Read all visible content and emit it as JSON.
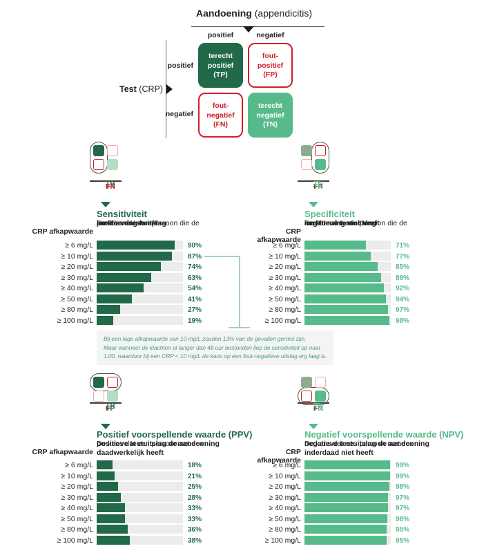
{
  "colors": {
    "dark_green": "#216948",
    "mid_green": "#57ba8b",
    "sage_green": "#8fac92",
    "light_green": "#b7dcc6",
    "red": "#d01f26",
    "faded_red": "#eaa9a5",
    "bar_track": "#ececec",
    "note_text": "#4f9e79",
    "connector": "#a9cfbc",
    "line_gray": "#58595b",
    "ink": "#232323"
  },
  "matrix": {
    "header_bold": "Aandoening",
    "header_normal": "(appendicitis)",
    "col_labels": [
      "positief",
      "negatief"
    ],
    "row_labels": [
      "positief",
      "negatief"
    ],
    "axis_bold": "Test",
    "axis_normal": "(CRP)",
    "cells": [
      {
        "id": "tp",
        "lines": [
          "terecht",
          "positief",
          "(TP)"
        ],
        "style": "dark"
      },
      {
        "id": "fp",
        "lines": [
          "fout-",
          "positief",
          "(FP)"
        ],
        "style": "red"
      },
      {
        "id": "fn",
        "lines": [
          "fout-",
          "negatief",
          "(FN)"
        ],
        "style": "red"
      },
      {
        "id": "tn",
        "lines": [
          "terecht",
          "negatief",
          "(TN)"
        ],
        "style": "mid"
      }
    ]
  },
  "chart_data": [
    {
      "type": "bar",
      "orientation": "horizontal",
      "id": "sensitiviteit",
      "accent": "dark",
      "title": "Sensitiviteit",
      "desc": [
        {
          "t": "De kans dat een persoon die de ",
          "b": 0
        },
        {
          "t": "aandoening heeft",
          "b": 1
        },
        {
          "t": " een ",
          "b": 0
        },
        {
          "t": "positieve testuitslag",
          "b": 1
        },
        {
          "t": " heeft",
          "b": 0
        }
      ],
      "axis_label": "CRP afkapwaarde",
      "unit": "%",
      "xlim": [
        0,
        100
      ],
      "icon": {
        "capsule": "left-column",
        "tp": "dark",
        "fp": "red-faded",
        "fn": "red",
        "tn": "light"
      },
      "formula": {
        "num": [
          {
            "t": "TP",
            "c": "dark"
          }
        ],
        "den": [
          {
            "t": "TP",
            "c": "dark"
          },
          {
            "t": " + ",
            "c": "text"
          },
          {
            "t": "FN",
            "c": "red"
          }
        ]
      },
      "categories": [
        "≥ 6 mg/L",
        "≥ 10 mg/L",
        "≥ 20 mg/L",
        "≥ 30 mg/L",
        "≥ 40 mg/L",
        "≥ 50 mg/L",
        "≥ 80 mg/L",
        "≥ 100 mg/L"
      ],
      "values": [
        90,
        87,
        74,
        63,
        54,
        41,
        27,
        19
      ],
      "annotation_lines": [
        "Bij een lage afkapwaarde van 10 mg/L zouden 13% van de gevallen gemist zijn.",
        "Maar wanneer de klachten al langer dan 48 uur bestonden liep de sensitiviteit op naar",
        "1.00, waardoor bij een CRP < 10 mg/L de kans op een fout-negatieve uitslag erg laag is."
      ]
    },
    {
      "type": "bar",
      "orientation": "horizontal",
      "id": "specificiteit",
      "accent": "mid",
      "title": "Specificiteit",
      "desc": [
        {
          "t": "De kans dat een persoon die de ",
          "b": 0
        },
        {
          "t": "aandoening niet heeft",
          "b": 1
        },
        {
          "t": " een ",
          "b": 0
        },
        {
          "t": "negatieve testuitslag",
          "b": 1
        },
        {
          "t": " heeft",
          "b": 0
        }
      ],
      "axis_label": "CRP afkapwaarde",
      "unit": "%",
      "xlim": [
        0,
        100
      ],
      "icon": {
        "capsule": "right-column",
        "tp": "sage",
        "fp": "red",
        "fn": "red-faded",
        "tn": "mid"
      },
      "formula": {
        "num": [
          {
            "t": "TN",
            "c": "mid"
          }
        ],
        "den": [
          {
            "t": "FP",
            "c": "red"
          },
          {
            "t": " + ",
            "c": "text"
          },
          {
            "t": "TN",
            "c": "mid"
          }
        ]
      },
      "categories": [
        "≥ 6 mg/L",
        "≥ 10 mg/L",
        "≥ 20 mg/L",
        "≥ 30 mg/L",
        "≥ 40 mg/L",
        "≥ 50 mg/L",
        "≥ 80 mg/L",
        "≥ 100 mg/L"
      ],
      "values": [
        71,
        77,
        85,
        89,
        92,
        94,
        97,
        98
      ]
    },
    {
      "type": "bar",
      "orientation": "horizontal",
      "id": "ppv",
      "accent": "dark",
      "title": "Positief voorspellende waarde (PPV)",
      "desc": [
        {
          "t": "De kans dat een persoonmet een ",
          "b": 0
        },
        {
          "t": "positieve testuitslag de aandoening daadwerkelijk heeft",
          "b": 1
        }
      ],
      "axis_label": "CRP afkapwaarde",
      "unit": "%",
      "xlim": [
        0,
        100
      ],
      "icon": {
        "capsule": "top-row",
        "tp": "dark",
        "fp": "red",
        "fn": "red-faded",
        "tn": "light"
      },
      "formula": {
        "num": [
          {
            "t": "TP",
            "c": "dark"
          }
        ],
        "den": [
          {
            "t": "FP",
            "c": "red"
          },
          {
            "t": " + ",
            "c": "text"
          },
          {
            "t": "TP",
            "c": "dark"
          }
        ]
      },
      "categories": [
        "≥ 6 mg/L",
        "≥ 10 mg/L",
        "≥ 20 mg/L",
        "≥ 30 mg/L",
        "≥ 40 mg/L",
        "≥ 50 mg/L",
        "≥ 80 mg/L",
        "≥ 100 mg/L"
      ],
      "values": [
        18,
        21,
        25,
        28,
        33,
        33,
        36,
        38
      ]
    },
    {
      "type": "bar",
      "orientation": "horizontal",
      "id": "npv",
      "accent": "mid",
      "title": "Negatief voorspellende waarde (NPV)",
      "desc": [
        {
          "t": "De kans dat een persoon met een ",
          "b": 0
        },
        {
          "t": "negatieve testuitslag de aandoening inderdaad niet heeft",
          "b": 1
        }
      ],
      "axis_label": "CRP afkapwaarde",
      "unit": "%",
      "xlim": [
        0,
        100
      ],
      "icon": {
        "capsule": "bottom-row",
        "tp": "sage",
        "fp": "red-faded",
        "fn": "red",
        "tn": "mid"
      },
      "formula": {
        "num": [
          {
            "t": "TN",
            "c": "mid"
          }
        ],
        "den": [
          {
            "t": "FN",
            "c": "red"
          },
          {
            "t": " + ",
            "c": "text"
          },
          {
            "t": "TN",
            "c": "mid"
          }
        ]
      },
      "categories": [
        "≥ 6 mg/L",
        "≥ 10 mg/L",
        "≥ 20 mg/L",
        "≥ 30 mg/L",
        "≥ 40 mg/L",
        "≥ 50 mg/L",
        "≥ 80 mg/L",
        "≥ 100 mg/L"
      ],
      "values": [
        99,
        99,
        98,
        97,
        97,
        96,
        95,
        95
      ]
    }
  ]
}
